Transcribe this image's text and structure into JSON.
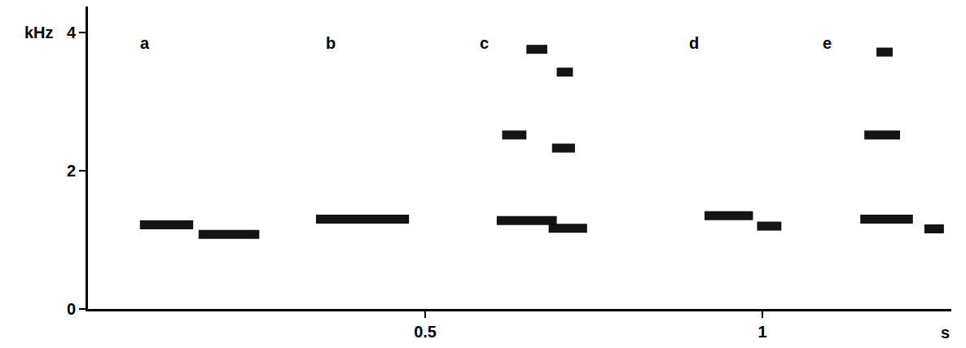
{
  "chart_data": {
    "type": "spectrogram",
    "color": "#000000",
    "xlabel": "s",
    "ylabel": "kHz",
    "xlim": [
      0,
      1.28
    ],
    "xticks": [
      0.5,
      1
    ],
    "ylim": [
      0,
      4.38
    ],
    "yticks": [
      0,
      2,
      4
    ],
    "grid": false,
    "calls": [
      {
        "label": "a",
        "label_x": 0.084,
        "label_f": 3.85,
        "segments": [
          {
            "t": [
              0.077,
              0.156
            ],
            "f": 1.22
          },
          {
            "t": [
              0.164,
              0.254
            ],
            "f": 1.08
          }
        ]
      },
      {
        "label": "b",
        "label_x": 0.36,
        "label_f": 3.85,
        "segments": [
          {
            "t": [
              0.338,
              0.476
            ],
            "f": 1.3
          }
        ]
      },
      {
        "label": "c",
        "label_x": 0.588,
        "label_f": 3.85,
        "segments": [
          {
            "t": [
              0.606,
              0.695
            ],
            "f": 1.28
          },
          {
            "t": [
              0.683,
              0.74
            ],
            "f": 1.17
          },
          {
            "t": [
              0.614,
              0.65
            ],
            "f": 2.52
          },
          {
            "t": [
              0.688,
              0.722
            ],
            "f": 2.33
          },
          {
            "t": [
              0.65,
              0.681
            ],
            "f": 3.76
          },
          {
            "t": [
              0.695,
              0.719
            ],
            "f": 3.43
          }
        ]
      },
      {
        "label": "d",
        "label_x": 0.899,
        "label_f": 3.85,
        "segments": [
          {
            "t": [
              0.914,
              0.986
            ],
            "f": 1.35
          },
          {
            "t": [
              0.992,
              1.028
            ],
            "f": 1.2
          }
        ]
      },
      {
        "label": "e",
        "label_x": 1.096,
        "label_f": 3.85,
        "segments": [
          {
            "t": [
              1.145,
              1.223
            ],
            "f": 1.3
          },
          {
            "t": [
              1.24,
              1.269
            ],
            "f": 1.16
          },
          {
            "t": [
              1.151,
              1.204
            ],
            "f": 2.52
          },
          {
            "t": [
              1.169,
              1.193
            ],
            "f": 3.72
          }
        ]
      }
    ]
  }
}
